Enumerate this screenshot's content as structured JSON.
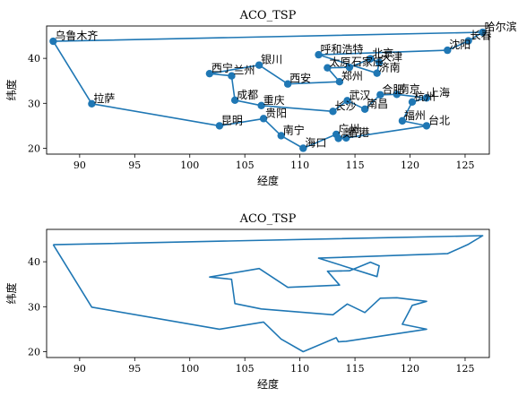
{
  "chart_data": [
    {
      "type": "line",
      "title": "ACO_TSP",
      "xlabel": "经度",
      "ylabel": "纬度",
      "xlim": [
        87,
        127.2
      ],
      "ylim": [
        18.7,
        47.2
      ],
      "xticks": [
        90,
        95,
        100,
        105,
        110,
        115,
        120,
        125
      ],
      "yticks": [
        20,
        30,
        40
      ],
      "markers": true,
      "show_city_labels": true,
      "color": "#1f77b4",
      "cities": [
        {
          "name": "乌鲁木齐",
          "x": 87.6,
          "y": 43.8
        },
        {
          "name": "拉萨",
          "x": 91.1,
          "y": 29.9
        },
        {
          "name": "昆明",
          "x": 102.7,
          "y": 25.0
        },
        {
          "name": "贵阳",
          "x": 106.7,
          "y": 26.6
        },
        {
          "name": "南宁",
          "x": 108.3,
          "y": 22.8
        },
        {
          "name": "海口",
          "x": 110.3,
          "y": 20.0
        },
        {
          "name": "广州",
          "x": 113.3,
          "y": 23.1
        },
        {
          "name": "澳门",
          "x": 113.5,
          "y": 22.2
        },
        {
          "name": "香港",
          "x": 114.2,
          "y": 22.3
        },
        {
          "name": "台北",
          "x": 121.5,
          "y": 25.0
        },
        {
          "name": "福州",
          "x": 119.3,
          "y": 26.1
        },
        {
          "name": "杭州",
          "x": 120.2,
          "y": 30.3
        },
        {
          "name": "上海",
          "x": 121.5,
          "y": 31.2
        },
        {
          "name": "南京",
          "x": 118.8,
          "y": 32.0
        },
        {
          "name": "合肥",
          "x": 117.3,
          "y": 31.9
        },
        {
          "name": "南昌",
          "x": 115.9,
          "y": 28.7
        },
        {
          "name": "武汉",
          "x": 114.3,
          "y": 30.6
        },
        {
          "name": "长沙",
          "x": 113.0,
          "y": 28.2
        },
        {
          "name": "重庆",
          "x": 106.5,
          "y": 29.5
        },
        {
          "name": "成都",
          "x": 104.1,
          "y": 30.7
        },
        {
          "name": "兰州",
          "x": 103.8,
          "y": 36.1
        },
        {
          "name": "西宁",
          "x": 101.8,
          "y": 36.6
        },
        {
          "name": "银川",
          "x": 106.3,
          "y": 38.5
        },
        {
          "name": "西安",
          "x": 108.9,
          "y": 34.3
        },
        {
          "name": "郑州",
          "x": 113.6,
          "y": 34.8
        },
        {
          "name": "太原",
          "x": 112.5,
          "y": 37.9
        },
        {
          "name": "石家庄",
          "x": 114.5,
          "y": 38.0
        },
        {
          "name": "北京",
          "x": 116.4,
          "y": 39.9
        },
        {
          "name": "天津",
          "x": 117.2,
          "y": 39.1
        },
        {
          "name": "济南",
          "x": 117.0,
          "y": 36.7
        },
        {
          "name": "呼和浩特",
          "x": 111.7,
          "y": 40.8
        },
        {
          "name": "沈阳",
          "x": 123.4,
          "y": 41.8
        },
        {
          "name": "长春",
          "x": 125.3,
          "y": 43.9
        },
        {
          "name": "哈尔滨",
          "x": 126.6,
          "y": 45.8
        }
      ],
      "route_closed": true
    },
    {
      "type": "line",
      "title": "ACO_TSP",
      "xlabel": "经度",
      "ylabel": "纬度",
      "xlim": [
        87,
        127.2
      ],
      "ylim": [
        18.7,
        47.2
      ],
      "xticks": [
        90,
        95,
        100,
        105,
        110,
        115,
        120,
        125
      ],
      "yticks": [
        20,
        30,
        40
      ],
      "markers": false,
      "show_city_labels": false,
      "color": "#1f77b4",
      "route_closed": true
    }
  ]
}
